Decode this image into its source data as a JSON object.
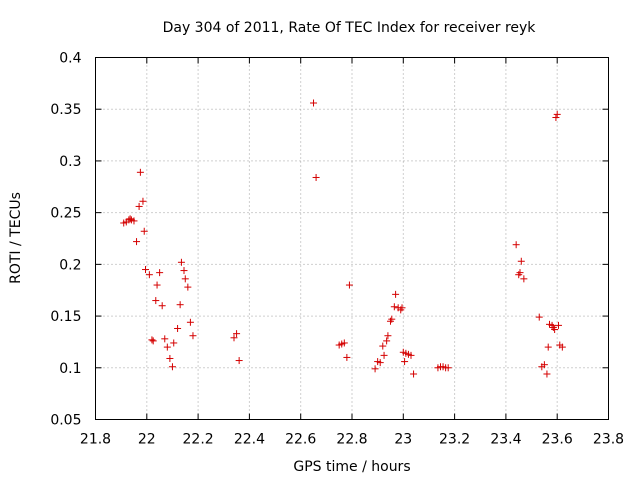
{
  "chart_data": {
    "type": "scatter",
    "title": "Day 304 of 2011, Rate Of TEC Index for receiver reyk",
    "xlabel": "GPS time / hours",
    "ylabel": "ROTI / TECUs",
    "xlim": [
      21.8,
      23.8
    ],
    "ylim": [
      0.05,
      0.4
    ],
    "grid": true,
    "marker": "+",
    "marker_color": "#d40000",
    "xticks": [
      {
        "value": 21.8,
        "label": "21.8"
      },
      {
        "value": 22.0,
        "label": "22"
      },
      {
        "value": 22.2,
        "label": "22.2"
      },
      {
        "value": 22.4,
        "label": "22.4"
      },
      {
        "value": 22.6,
        "label": "22.6"
      },
      {
        "value": 22.8,
        "label": "22.8"
      },
      {
        "value": 23.0,
        "label": "23"
      },
      {
        "value": 23.2,
        "label": "23.2"
      },
      {
        "value": 23.4,
        "label": "23.4"
      },
      {
        "value": 23.6,
        "label": "23.6"
      },
      {
        "value": 23.8,
        "label": "23.8"
      }
    ],
    "yticks": [
      {
        "value": 0.05,
        "label": "0.05"
      },
      {
        "value": 0.1,
        "label": "0.1"
      },
      {
        "value": 0.15,
        "label": "0.15"
      },
      {
        "value": 0.2,
        "label": "0.2"
      },
      {
        "value": 0.25,
        "label": "0.25"
      },
      {
        "value": 0.3,
        "label": "0.3"
      },
      {
        "value": 0.35,
        "label": "0.35"
      },
      {
        "value": 0.4,
        "label": "0.4"
      }
    ],
    "points": [
      [
        21.91,
        0.24
      ],
      [
        21.92,
        0.241
      ],
      [
        21.93,
        0.243
      ],
      [
        21.935,
        0.244
      ],
      [
        21.94,
        0.243
      ],
      [
        21.95,
        0.242
      ],
      [
        21.96,
        0.222
      ],
      [
        21.97,
        0.256
      ],
      [
        21.975,
        0.289
      ],
      [
        21.985,
        0.261
      ],
      [
        21.99,
        0.232
      ],
      [
        21.995,
        0.195
      ],
      [
        22.01,
        0.19
      ],
      [
        22.02,
        0.127
      ],
      [
        22.025,
        0.126
      ],
      [
        22.035,
        0.165
      ],
      [
        22.04,
        0.18
      ],
      [
        22.05,
        0.192
      ],
      [
        22.06,
        0.16
      ],
      [
        22.07,
        0.128
      ],
      [
        22.08,
        0.12
      ],
      [
        22.09,
        0.109
      ],
      [
        22.1,
        0.101
      ],
      [
        22.105,
        0.124
      ],
      [
        22.12,
        0.138
      ],
      [
        22.13,
        0.161
      ],
      [
        22.135,
        0.202
      ],
      [
        22.145,
        0.194
      ],
      [
        22.15,
        0.186
      ],
      [
        22.16,
        0.178
      ],
      [
        22.17,
        0.144
      ],
      [
        22.18,
        0.131
      ],
      [
        22.34,
        0.129
      ],
      [
        22.35,
        0.133
      ],
      [
        22.36,
        0.107
      ],
      [
        22.65,
        0.356
      ],
      [
        22.66,
        0.284
      ],
      [
        22.75,
        0.122
      ],
      [
        22.76,
        0.123
      ],
      [
        22.77,
        0.124
      ],
      [
        22.78,
        0.11
      ],
      [
        22.79,
        0.18
      ],
      [
        22.89,
        0.099
      ],
      [
        22.9,
        0.106
      ],
      [
        22.91,
        0.105
      ],
      [
        22.92,
        0.121
      ],
      [
        22.925,
        0.112
      ],
      [
        22.935,
        0.126
      ],
      [
        22.94,
        0.131
      ],
      [
        22.95,
        0.145
      ],
      [
        22.955,
        0.147
      ],
      [
        22.965,
        0.159
      ],
      [
        22.97,
        0.171
      ],
      [
        22.98,
        0.158
      ],
      [
        22.99,
        0.156
      ],
      [
        22.995,
        0.158
      ],
      [
        23.0,
        0.115
      ],
      [
        23.005,
        0.106
      ],
      [
        23.01,
        0.114
      ],
      [
        23.02,
        0.113
      ],
      [
        23.03,
        0.112
      ],
      [
        23.04,
        0.094
      ],
      [
        23.135,
        0.1
      ],
      [
        23.145,
        0.101
      ],
      [
        23.155,
        0.101
      ],
      [
        23.165,
        0.1
      ],
      [
        23.175,
        0.1
      ],
      [
        23.44,
        0.219
      ],
      [
        23.45,
        0.19
      ],
      [
        23.455,
        0.192
      ],
      [
        23.46,
        0.203
      ],
      [
        23.47,
        0.186
      ],
      [
        23.53,
        0.149
      ],
      [
        23.54,
        0.101
      ],
      [
        23.55,
        0.103
      ],
      [
        23.56,
        0.094
      ],
      [
        23.565,
        0.12
      ],
      [
        23.57,
        0.142
      ],
      [
        23.58,
        0.141
      ],
      [
        23.585,
        0.139
      ],
      [
        23.59,
        0.137
      ],
      [
        23.595,
        0.342
      ],
      [
        23.6,
        0.345
      ],
      [
        23.605,
        0.141
      ],
      [
        23.61,
        0.122
      ],
      [
        23.62,
        0.12
      ]
    ]
  }
}
